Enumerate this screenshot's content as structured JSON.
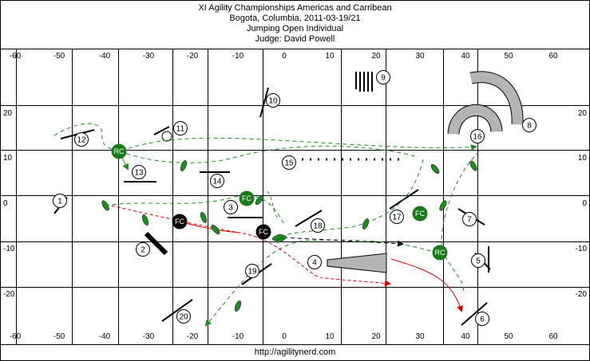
{
  "header": {
    "line1": "XI Agility Championships Americas and Carribean",
    "line2": "Bogota, Columbia, 2011-03-19/21",
    "line3": "Jumping Open Individual",
    "line4": "Judge: David Powell"
  },
  "footer": {
    "url": "http://agilitynerd.com"
  },
  "axes": {
    "x_ticks": [
      "-60",
      "-50",
      "-40",
      "-30",
      "-20",
      "-10",
      "0",
      "10",
      "20",
      "30",
      "40",
      "50",
      "60"
    ],
    "y_ticks": [
      "20",
      "10",
      "0",
      "-10",
      "-20"
    ]
  },
  "obstacles": [
    {
      "n": "1"
    },
    {
      "n": "2"
    },
    {
      "n": "3"
    },
    {
      "n": "4"
    },
    {
      "n": "5"
    },
    {
      "n": "6"
    },
    {
      "n": "7"
    },
    {
      "n": "8"
    },
    {
      "n": "9"
    },
    {
      "n": "10"
    },
    {
      "n": "11"
    },
    {
      "n": "12"
    },
    {
      "n": "13"
    },
    {
      "n": "14"
    },
    {
      "n": "15"
    },
    {
      "n": "16"
    },
    {
      "n": "17"
    },
    {
      "n": "18"
    },
    {
      "n": "19"
    },
    {
      "n": "20"
    }
  ],
  "handler_markers": [
    {
      "label": "RC",
      "color": "#1a7a1a"
    },
    {
      "label": "FC",
      "color": "#1a7a1a"
    },
    {
      "label": "FC",
      "color": "#1a7a1a"
    },
    {
      "label": "RC",
      "color": "#1a7a1a"
    },
    {
      "label": "FC",
      "color": "#000000"
    },
    {
      "label": "FC",
      "color": "#000000"
    }
  ],
  "colors": {
    "green": "#1f8c1f",
    "red": "#e00000",
    "black": "#000000",
    "tunnel": "#b4b4b4"
  }
}
